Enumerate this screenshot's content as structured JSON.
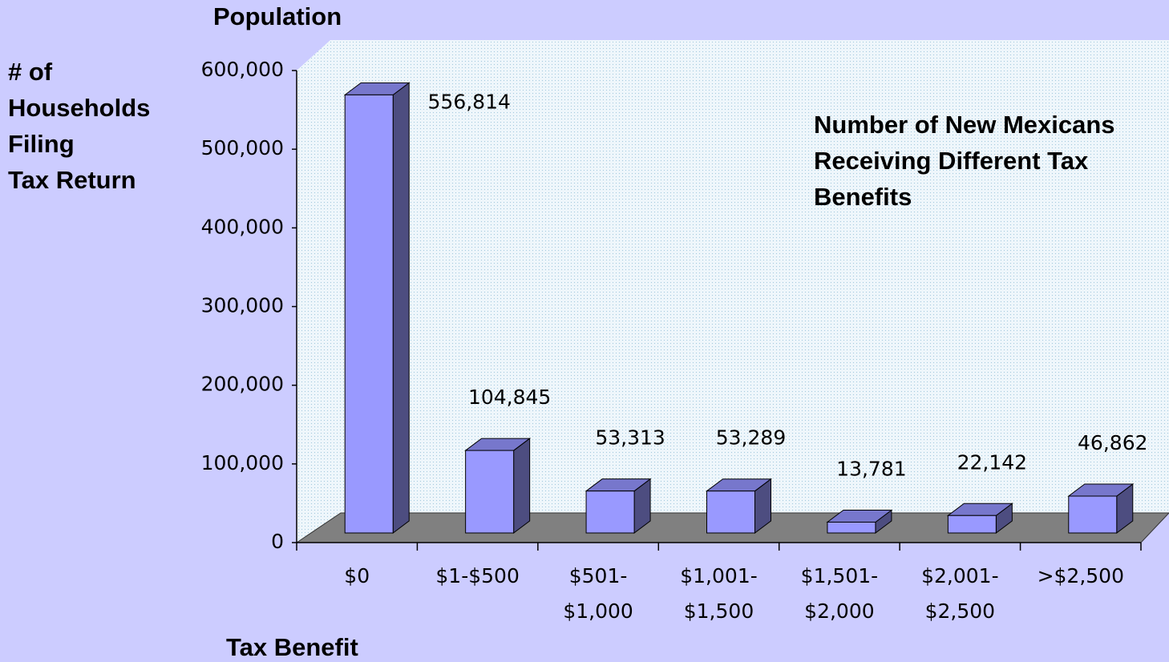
{
  "chart_data": {
    "type": "bar3d",
    "title": "Population",
    "ylabel": [
      "# of",
      "Households",
      "Filing",
      "Tax Return"
    ],
    "xlabel": "Tax Benefit",
    "annotation": [
      "Number of New Mexicans",
      "Receiving Different Tax",
      "Benefits"
    ],
    "categories": [
      [
        "$0"
      ],
      [
        "$1-$500"
      ],
      [
        "$501-",
        "$1,000"
      ],
      [
        "$1,001-",
        "$1,500"
      ],
      [
        "$1,501-",
        "$2,000"
      ],
      [
        "$2,001-",
        "$2,500"
      ],
      [
        ">$2,500"
      ]
    ],
    "values": [
      556814,
      104845,
      53313,
      53289,
      13781,
      22142,
      46862
    ],
    "value_labels": [
      "556,814",
      "104,845",
      "53,313",
      "53,289",
      "13,781",
      "22,142",
      "46,862"
    ],
    "color": "#9999ff",
    "ylim": [
      0,
      600000
    ],
    "yticks": [
      0,
      {
        "value": 100000,
        "label": "100,000"
      },
      {
        "value": 200000,
        "label": "200,000"
      },
      {
        "value": 300000,
        "label": "300,000"
      },
      {
        "value": 400000,
        "label": "400,000"
      },
      {
        "value": 500000,
        "label": "500,000"
      },
      {
        "value": 600000,
        "label": "600,000"
      }
    ]
  }
}
